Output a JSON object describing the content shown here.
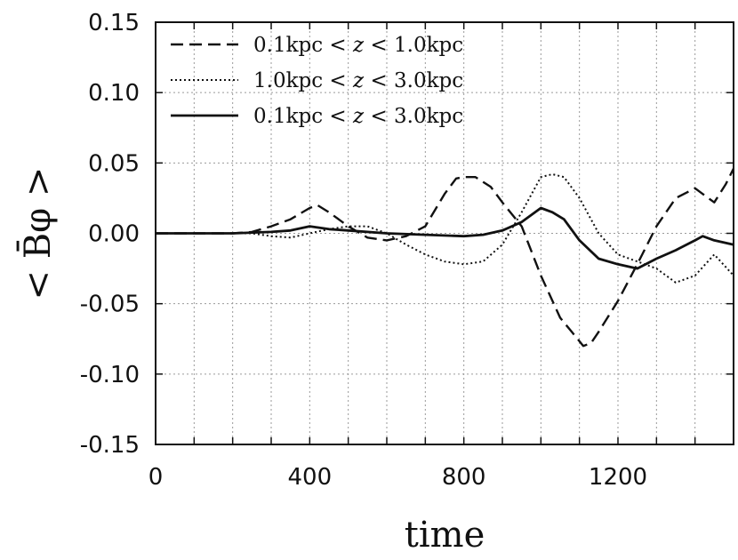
{
  "chart_data": {
    "type": "line",
    "xlabel": "time",
    "ylabel": "< B̄φ >",
    "xlim": [
      0,
      1500
    ],
    "ylim": [
      -0.15,
      0.15
    ],
    "x_ticks": [
      0,
      400,
      800,
      1200
    ],
    "x_tick_labels": [
      "0",
      "400",
      "800",
      "1200"
    ],
    "y_ticks": [
      -0.15,
      -0.1,
      -0.05,
      0.0,
      0.05,
      0.1,
      0.15
    ],
    "y_tick_labels": [
      "-0.15",
      "-0.10",
      "-0.05",
      "0.00",
      "0.05",
      "0.10",
      "0.15"
    ],
    "grid": true,
    "legend_position": "top-left",
    "series": [
      {
        "name": "0.1kpc < z < 1.0kpc",
        "label_parts": [
          "0.1kpc < ",
          "z",
          " < 1.0kpc"
        ],
        "dash": "dashed",
        "x": [
          0,
          100,
          200,
          250,
          300,
          350,
          400,
          420,
          450,
          500,
          550,
          600,
          650,
          700,
          750,
          780,
          800,
          830,
          870,
          900,
          950,
          1000,
          1050,
          1080,
          1110,
          1130,
          1150,
          1200,
          1250,
          1300,
          1350,
          1400,
          1420,
          1450,
          1480,
          1500
        ],
        "y": [
          0.0,
          0.0,
          0.0,
          0.001,
          0.005,
          0.01,
          0.018,
          0.02,
          0.015,
          0.005,
          -0.003,
          -0.005,
          -0.002,
          0.005,
          0.028,
          0.039,
          0.04,
          0.04,
          0.033,
          0.022,
          0.005,
          -0.03,
          -0.06,
          -0.07,
          -0.08,
          -0.078,
          -0.07,
          -0.048,
          -0.022,
          0.005,
          0.025,
          0.032,
          0.028,
          0.022,
          0.035,
          0.046
        ]
      },
      {
        "name": "1.0kpc < z < 3.0kpc",
        "label_parts": [
          "1.0kpc < ",
          "z",
          " < 3.0kpc"
        ],
        "dash": "dotted",
        "x": [
          0,
          100,
          200,
          250,
          300,
          350,
          400,
          450,
          500,
          550,
          600,
          650,
          700,
          750,
          800,
          850,
          900,
          950,
          1000,
          1030,
          1060,
          1100,
          1150,
          1200,
          1250,
          1300,
          1350,
          1400,
          1450,
          1500
        ],
        "y": [
          0.0,
          0.0,
          0.0,
          0.0,
          -0.002,
          -0.003,
          0.0,
          0.003,
          0.005,
          0.005,
          0.0,
          -0.008,
          -0.015,
          -0.02,
          -0.022,
          -0.02,
          -0.008,
          0.015,
          0.04,
          0.042,
          0.04,
          0.025,
          0.0,
          -0.015,
          -0.02,
          -0.025,
          -0.035,
          -0.03,
          -0.015,
          -0.03
        ]
      },
      {
        "name": "0.1kpc < z < 3.0kpc",
        "label_parts": [
          "0.1kpc < ",
          "z",
          " < 3.0kpc"
        ],
        "dash": "solid",
        "x": [
          0,
          100,
          200,
          300,
          350,
          400,
          450,
          500,
          600,
          700,
          800,
          850,
          900,
          950,
          1000,
          1030,
          1060,
          1100,
          1150,
          1200,
          1250,
          1300,
          1350,
          1400,
          1420,
          1450,
          1500
        ],
        "y": [
          0.0,
          0.0,
          0.0,
          0.001,
          0.002,
          0.005,
          0.003,
          0.002,
          0.0,
          -0.001,
          -0.002,
          -0.001,
          0.002,
          0.008,
          0.018,
          0.015,
          0.01,
          -0.005,
          -0.018,
          -0.022,
          -0.025,
          -0.018,
          -0.012,
          -0.005,
          -0.002,
          -0.005,
          -0.008
        ]
      }
    ]
  }
}
